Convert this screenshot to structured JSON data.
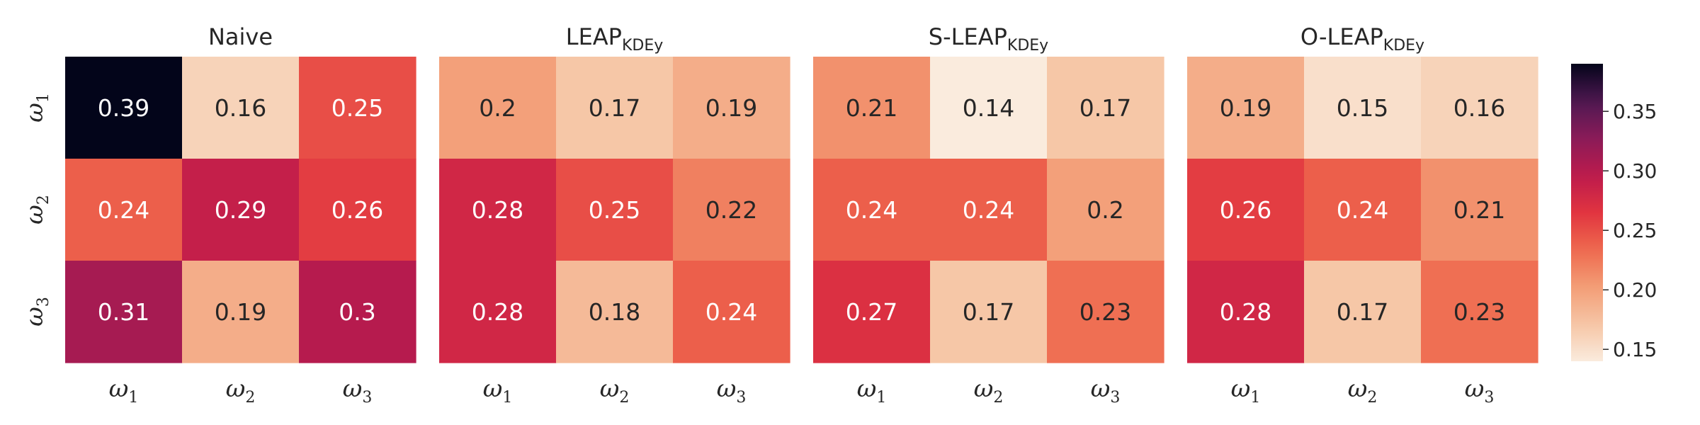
{
  "chart_data": {
    "type": "heatmap",
    "panels": [
      {
        "title_main": "Naive",
        "title_sub": "",
        "values": [
          [
            0.39,
            0.16,
            0.25
          ],
          [
            0.24,
            0.29,
            0.26
          ],
          [
            0.31,
            0.19,
            0.3
          ]
        ]
      },
      {
        "title_main": "LEAP",
        "title_sub": "KDEy",
        "values": [
          [
            0.2,
            0.17,
            0.19
          ],
          [
            0.28,
            0.25,
            0.22
          ],
          [
            0.28,
            0.18,
            0.24
          ]
        ]
      },
      {
        "title_main": "S-LEAP",
        "title_sub": "KDEy",
        "values": [
          [
            0.21,
            0.14,
            0.17
          ],
          [
            0.24,
            0.24,
            0.2
          ],
          [
            0.27,
            0.17,
            0.23
          ]
        ]
      },
      {
        "title_main": "O-LEAP",
        "title_sub": "KDEy",
        "values": [
          [
            0.19,
            0.15,
            0.16
          ],
          [
            0.26,
            0.24,
            0.21
          ],
          [
            0.28,
            0.17,
            0.23
          ]
        ]
      }
    ],
    "row_labels": [
      {
        "base": "ω",
        "sub": "1"
      },
      {
        "base": "ω",
        "sub": "2"
      },
      {
        "base": "ω",
        "sub": "3"
      }
    ],
    "col_labels": [
      {
        "base": "ω",
        "sub": "1"
      },
      {
        "base": "ω",
        "sub": "2"
      },
      {
        "base": "ω",
        "sub": "3"
      }
    ],
    "colorbar": {
      "vmin": 0.14,
      "vmax": 0.39,
      "ticks": [
        0.15,
        0.2,
        0.25,
        0.3,
        0.35
      ],
      "tick_labels": [
        "0.15",
        "0.20",
        "0.25",
        "0.30",
        "0.35"
      ],
      "colormap": "rocket_r"
    }
  }
}
